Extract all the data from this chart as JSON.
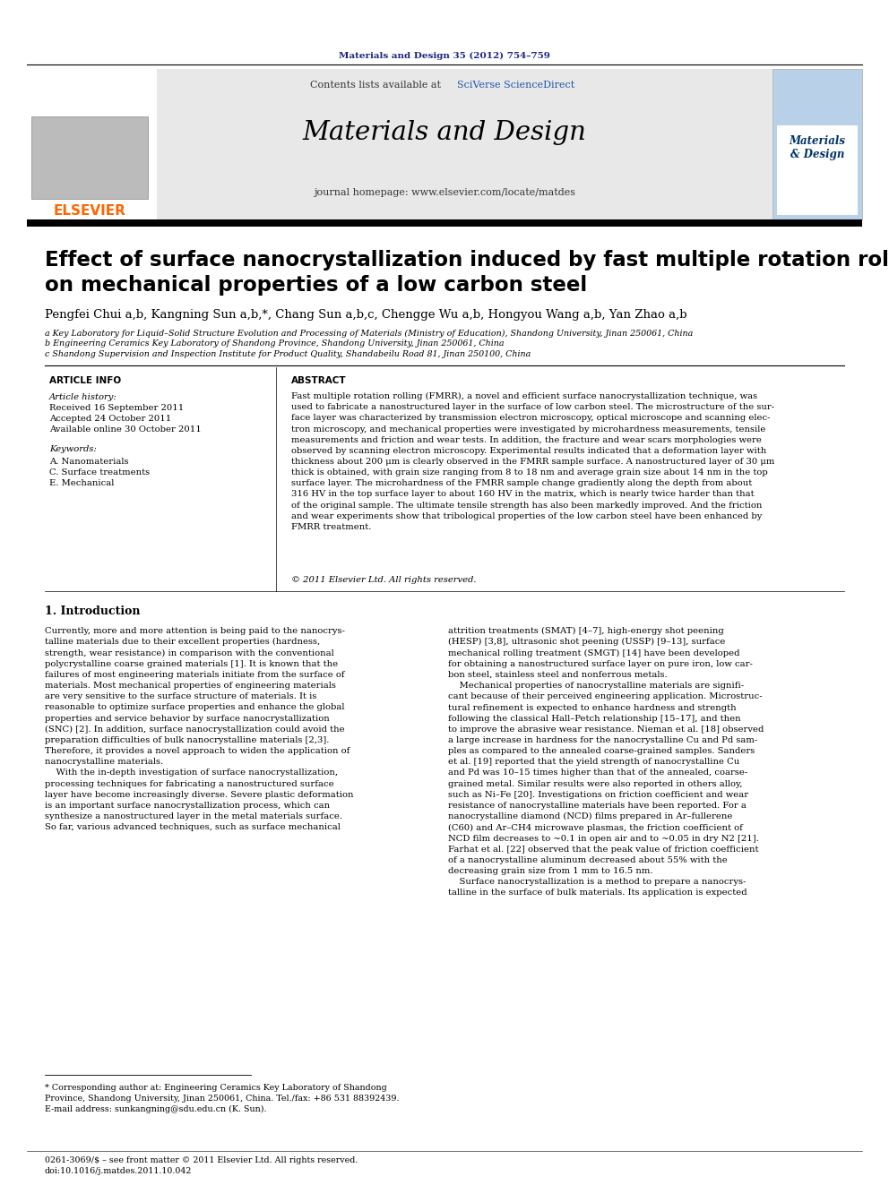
{
  "page_bg": "#ffffff",
  "top_journal_ref": "Materials and Design 35 (2012) 754–759",
  "top_journal_ref_color": "#1a237e",
  "header_bg": "#e8e8e8",
  "header_journal_name": "Materials and Design",
  "header_content_text": "Contents lists available at ",
  "header_sciverse": "SciVerse ScienceDirect",
  "header_homepage": "journal homepage: www.elsevier.com/locate/matdes",
  "paper_title_line1": "Effect of surface nanocrystallization induced by fast multiple rotation rolling",
  "paper_title_line2": "on mechanical properties of a low carbon steel",
  "authors_text": "Pengfei Chui a,b, Kangning Sun a,b,*, Chang Sun a,b,c, Chengge Wu a,b, Hongyou Wang a,b, Yan Zhao a,b",
  "affil_a": "a Key Laboratory for Liquid–Solid Structure Evolution and Processing of Materials (Ministry of Education), Shandong University, Jinan 250061, China",
  "affil_b": "b Engineering Ceramics Key Laboratory of Shandong Province, Shandong University, Jinan 250061, China",
  "affil_c": "c Shandong Supervision and Inspection Institute for Product Quality, Shandabeilu Road 81, Jinan 250100, China",
  "article_info_header": "ARTICLE INFO",
  "abstract_header": "ABSTRACT",
  "article_history_label": "Article history:",
  "received": "Received 16 September 2011",
  "accepted": "Accepted 24 October 2011",
  "available": "Available online 30 October 2011",
  "keywords_label": "Keywords:",
  "keyword1": "A. Nanomaterials",
  "keyword2": "C. Surface treatments",
  "keyword3": "E. Mechanical",
  "abstract_text": "Fast multiple rotation rolling (FMRR), a novel and efficient surface nanocrystallization technique, was\nused to fabricate a nanostructured layer in the surface of low carbon steel. The microstructure of the sur-\nface layer was characterized by transmission electron microscopy, optical microscope and scanning elec-\ntron microscopy, and mechanical properties were investigated by microhardness measurements, tensile\nmeasurements and friction and wear tests. In addition, the fracture and wear scars morphologies were\nobserved by scanning electron microscopy. Experimental results indicated that a deformation layer with\nthickness about 200 μm is clearly observed in the FMRR sample surface. A nanostructured layer of 30 μm\nthick is obtained, with grain size ranging from 8 to 18 nm and average grain size about 14 nm in the top\nsurface layer. The microhardness of the FMRR sample change gradiently along the depth from about\n316 HV in the top surface layer to about 160 HV in the matrix, which is nearly twice harder than that\nof the original sample. The ultimate tensile strength has also been markedly improved. And the friction\nand wear experiments show that tribological properties of the low carbon steel have been enhanced by\nFMRR treatment.",
  "copyright_text": "© 2011 Elsevier Ltd. All rights reserved.",
  "intro_header": "1. Introduction",
  "intro_col1": "Currently, more and more attention is being paid to the nanocrys-\ntalline materials due to their excellent properties (hardness,\nstrength, wear resistance) in comparison with the conventional\npolycrystalline coarse grained materials [1]. It is known that the\nfailures of most engineering materials initiate from the surface of\nmaterials. Most mechanical properties of engineering materials\nare very sensitive to the surface structure of materials. It is\nreasonable to optimize surface properties and enhance the global\nproperties and service behavior by surface nanocrystallization\n(SNC) [2]. In addition, surface nanocrystallization could avoid the\npreparation difficulties of bulk nanocrystalline materials [2,3].\nTherefore, it provides a novel approach to widen the application of\nnanocrystalline materials.\n    With the in-depth investigation of surface nanocrystallization,\nprocessing techniques for fabricating a nanostructured surface\nlayer have become increasingly diverse. Severe plastic deformation\nis an important surface nanocrystallization process, which can\nsynthesize a nanostructured layer in the metal materials surface.\nSo far, various advanced techniques, such as surface mechanical",
  "intro_col2": "attrition treatments (SMAT) [4–7], high-energy shot peening\n(HESP) [3,8], ultrasonic shot peening (USSP) [9–13], surface\nmechanical rolling treatment (SMGT) [14] have been developed\nfor obtaining a nanostructured surface layer on pure iron, low car-\nbon steel, stainless steel and nonferrous metals.\n    Mechanical properties of nanocrystalline materials are signifi-\ncant because of their perceived engineering application. Microstruc-\ntural refinement is expected to enhance hardness and strength\nfollowing the classical Hall–Petch relationship [15–17], and then\nto improve the abrasive wear resistance. Nieman et al. [18] observed\na large increase in hardness for the nanocrystalline Cu and Pd sam-\nples as compared to the annealed coarse-grained samples. Sanders\net al. [19] reported that the yield strength of nanocrystalline Cu\nand Pd was 10–15 times higher than that of the annealed, coarse-\ngrained metal. Similar results were also reported in others alloy,\nsuch as Ni–Fe [20]. Investigations on friction coefficient and wear\nresistance of nanocrystalline materials have been reported. For a\nnanocrystalline diamond (NCD) films prepared in Ar–fullerene\n(C60) and Ar–CH4 microwave plasmas, the friction coefficient of\nNCD film decreases to ~0.1 in open air and to ~0.05 in dry N2 [21].\nFarhat et al. [22] observed that the peak value of friction coefficient\nof a nanocrystalline aluminum decreased about 55% with the\ndecreasing grain size from 1 mm to 16.5 nm.\n    Surface nanocrystallization is a method to prepare a nanocrys-\ntalline in the surface of bulk materials. Its application is expected",
  "footnote_star": "* Corresponding author at: Engineering Ceramics Key Laboratory of Shandong\nProvince, Shandong University, Jinan 250061, China. Tel./fax: +86 531 88392439.\nE-mail address: sunkangning@sdu.edu.cn (K. Sun).",
  "footer_issn": "0261-3069/$ – see front matter © 2011 Elsevier Ltd. All rights reserved.",
  "footer_doi": "doi:10.1016/j.matdes.2011.10.042"
}
